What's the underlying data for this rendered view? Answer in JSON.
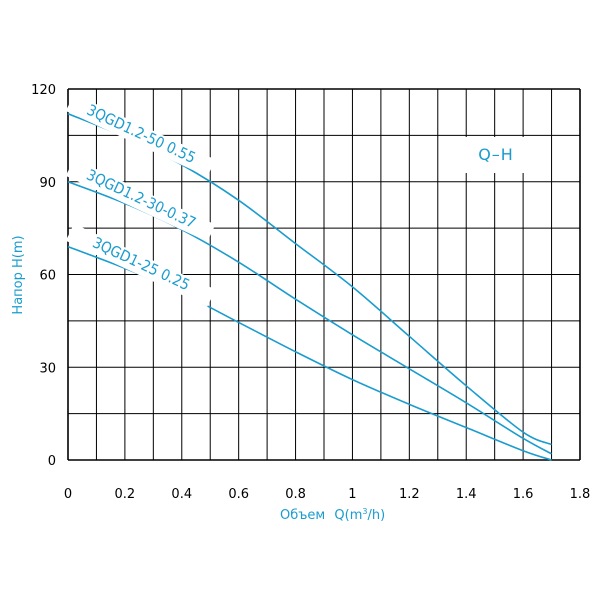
{
  "chart_data": {
    "type": "line",
    "title": "",
    "legend": "Q–H",
    "xlabel": {
      "prefix": "Объем",
      "q": "Q(m",
      "sup": "3",
      "suffix": "/h)"
    },
    "ylabel": "Напор H(m)",
    "xlim": [
      0,
      1.8
    ],
    "ylim": [
      0,
      120
    ],
    "grid": true,
    "x_ticks": [
      "0",
      "0.2",
      "0.4",
      "0.6",
      "0.8",
      "1",
      "1.2",
      "1.4",
      "1.6",
      "1.8"
    ],
    "y_ticks": [
      "0",
      "30",
      "60",
      "90",
      "120"
    ],
    "colors": {
      "series": "#1a9ccf",
      "grid": "#000000",
      "text": "#000000",
      "accent": "#1a9ccf"
    },
    "series": [
      {
        "name": "3QGD1.2-50 0.55",
        "points": [
          [
            0,
            112
          ],
          [
            0.2,
            104.5
          ],
          [
            0.4,
            95.5
          ],
          [
            0.6,
            84
          ],
          [
            0.8,
            70
          ],
          [
            1.0,
            56
          ],
          [
            1.2,
            40
          ],
          [
            1.4,
            24
          ],
          [
            1.6,
            9
          ],
          [
            1.7,
            5
          ]
        ]
      },
      {
        "name": "3QGD1.2-30-0.37",
        "points": [
          [
            0,
            90
          ],
          [
            0.2,
            83
          ],
          [
            0.4,
            74.5
          ],
          [
            0.6,
            64
          ],
          [
            0.8,
            52
          ],
          [
            1.0,
            40.5
          ],
          [
            1.2,
            29.5
          ],
          [
            1.4,
            18.5
          ],
          [
            1.6,
            7
          ],
          [
            1.7,
            2
          ]
        ]
      },
      {
        "name": "3QGD1-25 0.25",
        "points": [
          [
            0,
            69
          ],
          [
            0.2,
            62
          ],
          [
            0.4,
            54
          ],
          [
            0.6,
            44.5
          ],
          [
            0.8,
            35
          ],
          [
            1.0,
            26
          ],
          [
            1.2,
            18
          ],
          [
            1.4,
            10.5
          ],
          [
            1.6,
            3
          ],
          [
            1.7,
            0
          ]
        ]
      }
    ]
  }
}
